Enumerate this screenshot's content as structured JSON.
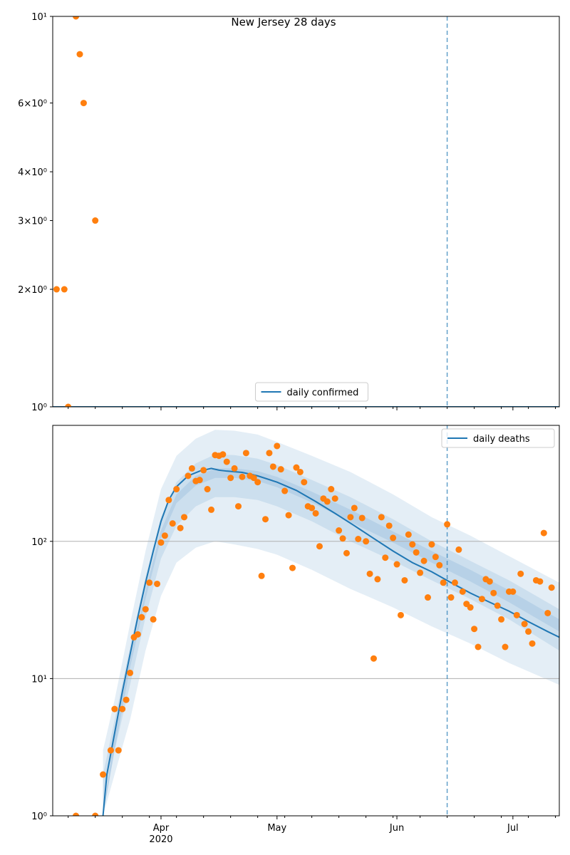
{
  "title": "New Jersey 28 days",
  "colors": {
    "line": "#1f77b4",
    "obs": "#ff7f0e",
    "band": "#1f77b4",
    "grid": "#b0b0b0",
    "vline": "#1f77b4"
  },
  "x_axis": {
    "ticks": [
      {
        "date": "2020-04-01",
        "label": "Apr",
        "sublabel": "2020"
      },
      {
        "date": "2020-05-01",
        "label": "May",
        "sublabel": ""
      },
      {
        "date": "2020-06-01",
        "label": "Jun",
        "sublabel": ""
      },
      {
        "date": "2020-07-01",
        "label": "Jul",
        "sublabel": ""
      }
    ],
    "range": [
      "2020-03-04",
      "2020-07-13"
    ]
  },
  "chart_data": [
    {
      "type": "scatter+line",
      "title": "New Jersey 28 days",
      "scale": "log",
      "ylim": [
        1,
        10
      ],
      "y_ticks": [
        {
          "value": 1,
          "label": "10⁰"
        },
        {
          "value": 2,
          "label": "2×10⁰"
        },
        {
          "value": 3,
          "label": "3×10⁰"
        },
        {
          "value": 4,
          "label": "4×10⁰"
        },
        {
          "value": 6,
          "label": "6×10⁰"
        },
        {
          "value": 10,
          "label": "10¹"
        }
      ],
      "grid": false,
      "legend": "lower center",
      "vline_date": "2020-06-14",
      "line": {
        "name": "daily confirmed",
        "x": [
          "2020-03-04",
          "2020-07-13"
        ],
        "y": [
          1,
          1
        ]
      },
      "observed": {
        "x": [
          "2020-03-05",
          "2020-03-07",
          "2020-03-08",
          "2020-03-10",
          "2020-03-11",
          "2020-03-12",
          "2020-03-15"
        ],
        "y": [
          2,
          2,
          1,
          10,
          8,
          6,
          3
        ]
      }
    },
    {
      "type": "scatter+line",
      "scale": "log",
      "ylim": [
        1,
        700
      ],
      "y_ticks": [
        {
          "value": 1,
          "label": "10⁰"
        },
        {
          "value": 10,
          "label": "10¹"
        },
        {
          "value": 100,
          "label": "10²"
        }
      ],
      "grid": true,
      "legend": "top right",
      "vline_date": "2020-06-14",
      "line": {
        "name": "daily deaths",
        "x": [
          "2020-03-17",
          "2020-03-18",
          "2020-03-20",
          "2020-03-22",
          "2020-03-24",
          "2020-03-26",
          "2020-03-28",
          "2020-03-30",
          "2020-04-01",
          "2020-04-03",
          "2020-04-05",
          "2020-04-08",
          "2020-04-11",
          "2020-04-14",
          "2020-04-16",
          "2020-04-18",
          "2020-04-22",
          "2020-04-26",
          "2020-05-01",
          "2020-05-06",
          "2020-05-11",
          "2020-05-16",
          "2020-05-21",
          "2020-05-26",
          "2020-05-31",
          "2020-06-05",
          "2020-06-10",
          "2020-06-15",
          "2020-06-20",
          "2020-06-25",
          "2020-06-30",
          "2020-07-05",
          "2020-07-10",
          "2020-07-13"
        ],
        "y": [
          1,
          2,
          4,
          8,
          15,
          28,
          50,
          85,
          140,
          200,
          250,
          300,
          325,
          340,
          330,
          325,
          318,
          300,
          270,
          235,
          195,
          160,
          130,
          105,
          85,
          70,
          60,
          50,
          42,
          36,
          31,
          26,
          22,
          20
        ]
      },
      "bands": [
        {
          "x": [
            "2020-03-17",
            "2020-03-20",
            "2020-03-24",
            "2020-03-28",
            "2020-04-01",
            "2020-04-05",
            "2020-04-10",
            "2020-04-15",
            "2020-04-20",
            "2020-04-26",
            "2020-05-01",
            "2020-05-10",
            "2020-05-20",
            "2020-05-31",
            "2020-06-10",
            "2020-06-20",
            "2020-06-30",
            "2020-07-13"
          ],
          "lower": [
            1,
            2,
            5,
            16,
            40,
            70,
            90,
            100,
            95,
            88,
            80,
            62,
            45,
            33,
            24,
            18,
            13,
            9
          ],
          "upper": [
            3,
            7,
            25,
            85,
            240,
            420,
            560,
            650,
            640,
            600,
            530,
            420,
            320,
            220,
            150,
            110,
            78,
            50
          ]
        },
        {
          "x": [
            "2020-03-17",
            "2020-03-20",
            "2020-03-24",
            "2020-03-28",
            "2020-04-01",
            "2020-04-05",
            "2020-04-10",
            "2020-04-15",
            "2020-04-20",
            "2020-04-26",
            "2020-05-01",
            "2020-05-10",
            "2020-05-20",
            "2020-05-31",
            "2020-06-10",
            "2020-06-20",
            "2020-06-30",
            "2020-07-13"
          ],
          "lower": [
            1,
            3,
            9,
            28,
            75,
            130,
            180,
            210,
            210,
            200,
            180,
            140,
            100,
            72,
            52,
            38,
            27,
            16
          ],
          "upper": [
            2,
            5,
            17,
            55,
            150,
            270,
            370,
            430,
            425,
            400,
            360,
            280,
            210,
            145,
            100,
            72,
            52,
            32
          ]
        },
        {
          "x": [
            "2020-03-17",
            "2020-03-20",
            "2020-03-24",
            "2020-03-28",
            "2020-04-01",
            "2020-04-05",
            "2020-04-10",
            "2020-04-15",
            "2020-04-20",
            "2020-04-26",
            "2020-05-01",
            "2020-05-10",
            "2020-05-20",
            "2020-05-31",
            "2020-06-10",
            "2020-06-20",
            "2020-06-30",
            "2020-07-13"
          ],
          "lower": [
            1,
            3,
            12,
            38,
            105,
            190,
            255,
            290,
            290,
            275,
            248,
            192,
            138,
            98,
            70,
            51,
            36,
            22
          ],
          "upper": [
            1,
            4,
            14,
            44,
            120,
            220,
            300,
            340,
            340,
            325,
            295,
            230,
            170,
            118,
            85,
            62,
            44,
            27
          ]
        }
      ],
      "observed": {
        "x": [
          "2020-03-10",
          "2020-03-15",
          "2020-03-17",
          "2020-03-19",
          "2020-03-20",
          "2020-03-21",
          "2020-03-22",
          "2020-03-23",
          "2020-03-24",
          "2020-03-25",
          "2020-03-26",
          "2020-03-27",
          "2020-03-28",
          "2020-03-29",
          "2020-03-30",
          "2020-03-31",
          "2020-04-01",
          "2020-04-02",
          "2020-04-03",
          "2020-04-04",
          "2020-04-05",
          "2020-04-06",
          "2020-04-07",
          "2020-04-08",
          "2020-04-09",
          "2020-04-10",
          "2020-04-11",
          "2020-04-12",
          "2020-04-13",
          "2020-04-14",
          "2020-04-15",
          "2020-04-16",
          "2020-04-17",
          "2020-04-18",
          "2020-04-19",
          "2020-04-20",
          "2020-04-21",
          "2020-04-22",
          "2020-04-23",
          "2020-04-24",
          "2020-04-25",
          "2020-04-26",
          "2020-04-27",
          "2020-04-28",
          "2020-04-29",
          "2020-04-30",
          "2020-05-01",
          "2020-05-02",
          "2020-05-03",
          "2020-05-04",
          "2020-05-05",
          "2020-05-06",
          "2020-05-07",
          "2020-05-08",
          "2020-05-09",
          "2020-05-10",
          "2020-05-11",
          "2020-05-12",
          "2020-05-13",
          "2020-05-14",
          "2020-05-15",
          "2020-05-16",
          "2020-05-17",
          "2020-05-18",
          "2020-05-19",
          "2020-05-20",
          "2020-05-21",
          "2020-05-22",
          "2020-05-23",
          "2020-05-24",
          "2020-05-25",
          "2020-05-26",
          "2020-05-27",
          "2020-05-28",
          "2020-05-29",
          "2020-05-30",
          "2020-05-31",
          "2020-06-01",
          "2020-06-02",
          "2020-06-03",
          "2020-06-04",
          "2020-06-05",
          "2020-06-06",
          "2020-06-07",
          "2020-06-08",
          "2020-06-09",
          "2020-06-10",
          "2020-06-11",
          "2020-06-12",
          "2020-06-13",
          "2020-06-14",
          "2020-06-15",
          "2020-06-16",
          "2020-06-17",
          "2020-06-18",
          "2020-06-19",
          "2020-06-20",
          "2020-06-21",
          "2020-06-22",
          "2020-06-23",
          "2020-06-24",
          "2020-06-25",
          "2020-06-26",
          "2020-06-27",
          "2020-06-28",
          "2020-06-29",
          "2020-06-30",
          "2020-07-01",
          "2020-07-02",
          "2020-07-03",
          "2020-07-04",
          "2020-07-05",
          "2020-07-06",
          "2020-07-07",
          "2020-07-08",
          "2020-07-09",
          "2020-07-10",
          "2020-07-11"
        ],
        "y": [
          1,
          1,
          2,
          3,
          6,
          3,
          6,
          7,
          11,
          20,
          21,
          28,
          32,
          50,
          27,
          49,
          98,
          110,
          200,
          135,
          240,
          125,
          150,
          300,
          340,
          275,
          280,
          330,
          240,
          170,
          425,
          420,
          430,
          380,
          290,
          340,
          180,
          295,
          440,
          300,
          290,
          270,
          56,
          145,
          440,
          350,
          495,
          335,
          233,
          155,
          64,
          345,
          320,
          270,
          180,
          175,
          160,
          92,
          205,
          195,
          240,
          205,
          120,
          105,
          82,
          150,
          175,
          104,
          148,
          100,
          58,
          14,
          53,
          150,
          76,
          130,
          106,
          68,
          29,
          52,
          112,
          95,
          83,
          59,
          72,
          39,
          95,
          77,
          67,
          50,
          133,
          39,
          50,
          87,
          43,
          35,
          33,
          23,
          17,
          38,
          53,
          51,
          42,
          34,
          27,
          17,
          43,
          43,
          29,
          58,
          25,
          22,
          18,
          52,
          51,
          115,
          30,
          46
        ]
      }
    }
  ]
}
